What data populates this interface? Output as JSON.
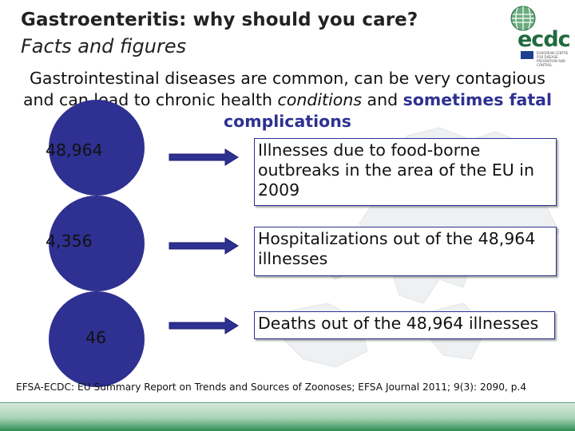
{
  "slide": {
    "title": "Gastroenteritis: why should you care?",
    "subtitle": "Facts and figures",
    "intro": {
      "part1": "Gastrointestinal diseases are common, can be very contagious and can lead to chronic health ",
      "part2": "conditions",
      "part3": " and ",
      "part4": "sometimes fatal complications"
    },
    "facts": [
      {
        "number": "48,964",
        "text": "Illnesses due to food-borne outbreaks in the area of the EU in 2009"
      },
      {
        "number": "4,356",
        "text": "Hospitalizations out of the 48,964 illnesses"
      },
      {
        "number": "46",
        "text": "Deaths out of the 48,964 illnesses"
      }
    ],
    "source": "EFSA-ECDC: EU Summary Report  on Trends and Sources of Zoonoses; EFSA Journal 2011; 9(3): 2090, p.4"
  },
  "logo": {
    "text": "ecdc",
    "small_text": "EUROPEAN CENTRE FOR DISEASE PREVENTION AND CONTROL"
  },
  "colors": {
    "circle": "#2e3191",
    "highlight": "#2e3192",
    "arrow": "#2e3191",
    "logo_green": "#1f6b3f",
    "footer_green": "#2f8f55"
  },
  "icons": {
    "arrow": "right-arrow-icon",
    "globe": "globe-icon",
    "flag": "eu-flag-icon"
  }
}
